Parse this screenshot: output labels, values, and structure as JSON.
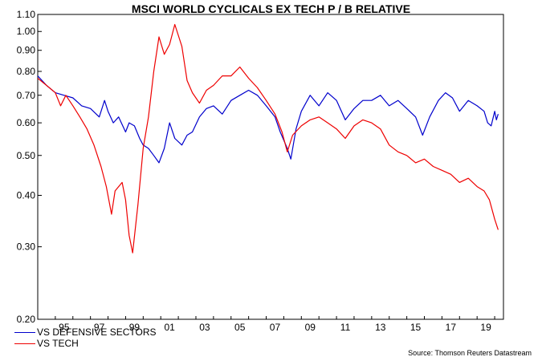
{
  "chart_data": {
    "type": "line",
    "title": "MSCI WORLD CYCLICALS EX TECH P / B RELATIVE",
    "y_scale": "log",
    "ylim": [
      0.2,
      1.1
    ],
    "y_ticks": [
      "0.20",
      "0.30",
      "0.40",
      "0.50",
      "0.60",
      "0.70",
      "0.80",
      "0.90",
      "1.00",
      "1.10"
    ],
    "x_range": [
      1994.0,
      2020.5
    ],
    "x_ticks": [
      "95",
      "97",
      "99",
      "01",
      "03",
      "05",
      "07",
      "09",
      "11",
      "13",
      "15",
      "17",
      "19"
    ],
    "grid": false,
    "legend_position": "bottom-left",
    "source": "Source: Thomson Reuters Datastream",
    "series": [
      {
        "name": "VS DEFENSIVE SECTORS",
        "color": "#0000cc",
        "points": [
          [
            1994.0,
            0.78
          ],
          [
            1994.5,
            0.74
          ],
          [
            1995.0,
            0.71
          ],
          [
            1995.5,
            0.7
          ],
          [
            1996.0,
            0.69
          ],
          [
            1996.5,
            0.66
          ],
          [
            1997.0,
            0.65
          ],
          [
            1997.5,
            0.62
          ],
          [
            1997.8,
            0.68
          ],
          [
            1998.0,
            0.64
          ],
          [
            1998.3,
            0.6
          ],
          [
            1998.6,
            0.62
          ],
          [
            1999.0,
            0.57
          ],
          [
            1999.2,
            0.6
          ],
          [
            1999.5,
            0.59
          ],
          [
            1999.8,
            0.55
          ],
          [
            2000.0,
            0.53
          ],
          [
            2000.3,
            0.52
          ],
          [
            2000.6,
            0.5
          ],
          [
            2000.9,
            0.48
          ],
          [
            2001.2,
            0.52
          ],
          [
            2001.5,
            0.6
          ],
          [
            2001.8,
            0.55
          ],
          [
            2002.2,
            0.53
          ],
          [
            2002.5,
            0.56
          ],
          [
            2002.8,
            0.57
          ],
          [
            2003.2,
            0.62
          ],
          [
            2003.6,
            0.65
          ],
          [
            2004.0,
            0.66
          ],
          [
            2004.5,
            0.63
          ],
          [
            2005.0,
            0.68
          ],
          [
            2005.5,
            0.7
          ],
          [
            2006.0,
            0.72
          ],
          [
            2006.5,
            0.7
          ],
          [
            2007.0,
            0.66
          ],
          [
            2007.5,
            0.62
          ],
          [
            2007.8,
            0.57
          ],
          [
            2008.2,
            0.52
          ],
          [
            2008.4,
            0.49
          ],
          [
            2008.7,
            0.58
          ],
          [
            2009.0,
            0.64
          ],
          [
            2009.5,
            0.7
          ],
          [
            2010.0,
            0.66
          ],
          [
            2010.5,
            0.71
          ],
          [
            2011.0,
            0.68
          ],
          [
            2011.5,
            0.61
          ],
          [
            2012.0,
            0.65
          ],
          [
            2012.5,
            0.68
          ],
          [
            2013.0,
            0.68
          ],
          [
            2013.5,
            0.7
          ],
          [
            2014.0,
            0.66
          ],
          [
            2014.5,
            0.68
          ],
          [
            2015.0,
            0.65
          ],
          [
            2015.5,
            0.62
          ],
          [
            2015.9,
            0.56
          ],
          [
            2016.3,
            0.62
          ],
          [
            2016.8,
            0.68
          ],
          [
            2017.2,
            0.71
          ],
          [
            2017.6,
            0.69
          ],
          [
            2018.0,
            0.64
          ],
          [
            2018.5,
            0.68
          ],
          [
            2019.0,
            0.66
          ],
          [
            2019.4,
            0.64
          ],
          [
            2019.6,
            0.6
          ],
          [
            2019.8,
            0.59
          ],
          [
            2020.0,
            0.64
          ],
          [
            2020.1,
            0.61
          ],
          [
            2020.2,
            0.63
          ]
        ]
      },
      {
        "name": "VS TECH",
        "color": "#ee0000",
        "points": [
          [
            1994.0,
            0.77
          ],
          [
            1994.5,
            0.74
          ],
          [
            1995.0,
            0.71
          ],
          [
            1995.3,
            0.66
          ],
          [
            1995.6,
            0.7
          ],
          [
            1996.0,
            0.66
          ],
          [
            1996.4,
            0.62
          ],
          [
            1996.8,
            0.58
          ],
          [
            1997.2,
            0.53
          ],
          [
            1997.6,
            0.47
          ],
          [
            1997.9,
            0.42
          ],
          [
            1998.2,
            0.36
          ],
          [
            1998.4,
            0.41
          ],
          [
            1998.8,
            0.43
          ],
          [
            1999.0,
            0.39
          ],
          [
            1999.2,
            0.32
          ],
          [
            1999.4,
            0.29
          ],
          [
            1999.7,
            0.38
          ],
          [
            2000.0,
            0.52
          ],
          [
            2000.3,
            0.62
          ],
          [
            2000.6,
            0.8
          ],
          [
            2000.9,
            0.97
          ],
          [
            2001.2,
            0.88
          ],
          [
            2001.5,
            0.93
          ],
          [
            2001.8,
            1.04
          ],
          [
            2002.2,
            0.92
          ],
          [
            2002.5,
            0.76
          ],
          [
            2002.8,
            0.71
          ],
          [
            2003.2,
            0.67
          ],
          [
            2003.6,
            0.72
          ],
          [
            2004.0,
            0.74
          ],
          [
            2004.5,
            0.78
          ],
          [
            2005.0,
            0.78
          ],
          [
            2005.5,
            0.82
          ],
          [
            2006.0,
            0.77
          ],
          [
            2006.5,
            0.73
          ],
          [
            2007.0,
            0.68
          ],
          [
            2007.5,
            0.63
          ],
          [
            2007.9,
            0.57
          ],
          [
            2008.2,
            0.51
          ],
          [
            2008.5,
            0.56
          ],
          [
            2009.0,
            0.59
          ],
          [
            2009.5,
            0.61
          ],
          [
            2010.0,
            0.62
          ],
          [
            2010.5,
            0.6
          ],
          [
            2011.0,
            0.58
          ],
          [
            2011.5,
            0.55
          ],
          [
            2012.0,
            0.59
          ],
          [
            2012.5,
            0.61
          ],
          [
            2013.0,
            0.6
          ],
          [
            2013.5,
            0.58
          ],
          [
            2014.0,
            0.53
          ],
          [
            2014.5,
            0.51
          ],
          [
            2015.0,
            0.5
          ],
          [
            2015.5,
            0.48
          ],
          [
            2016.0,
            0.49
          ],
          [
            2016.5,
            0.47
          ],
          [
            2017.0,
            0.46
          ],
          [
            2017.5,
            0.45
          ],
          [
            2018.0,
            0.43
          ],
          [
            2018.5,
            0.44
          ],
          [
            2019.0,
            0.42
          ],
          [
            2019.4,
            0.41
          ],
          [
            2019.7,
            0.39
          ],
          [
            2020.0,
            0.35
          ],
          [
            2020.2,
            0.33
          ]
        ]
      }
    ]
  }
}
